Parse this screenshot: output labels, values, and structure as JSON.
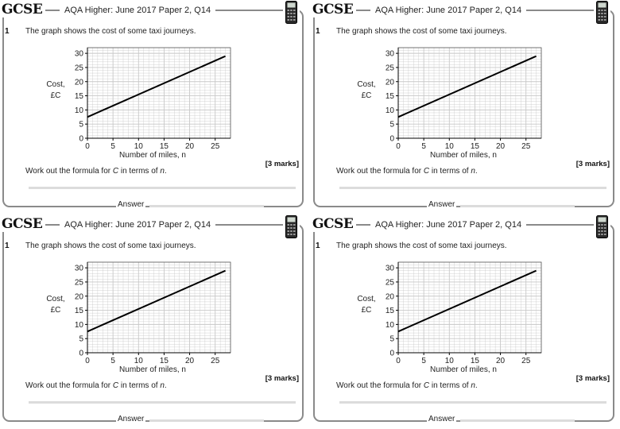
{
  "cards": [
    {
      "gcse": "GCSE",
      "header": "AQA Higher: June 2017 Paper 2, Q14",
      "question_number": "1",
      "question_text": "The graph shows the cost of some taxi journeys.",
      "instruction": "Work out the formula for C in terms of n.",
      "marks": "[3 marks]",
      "answer_label": "Answer"
    },
    {
      "gcse": "GCSE",
      "header": "AQA Higher: June 2017 Paper 2, Q14",
      "question_number": "1",
      "question_text": "The graph shows the cost of some taxi journeys.",
      "instruction": "Work out the formula for C in terms of n.",
      "marks": "[3 marks]",
      "answer_label": "Answer"
    },
    {
      "gcse": "GCSE",
      "header": "AQA Higher: June 2017 Paper 2, Q14",
      "question_number": "1",
      "question_text": "The graph shows the cost of some taxi journeys.",
      "instruction": "Work out the formula for C in terms of n.",
      "marks": "[3 marks]",
      "answer_label": "Answer"
    },
    {
      "gcse": "GCSE",
      "header": "AQA Higher: June 2017 Paper 2, Q14",
      "question_number": "1",
      "question_text": "The graph shows the cost of some taxi journeys.",
      "instruction": "Work out the formula for C in terms of n.",
      "marks": "[3 marks]",
      "answer_label": "Answer"
    }
  ],
  "chart_data": {
    "type": "line",
    "xlabel": "Number of miles, n",
    "ylabel_line1": "Cost,",
    "ylabel_line2": "£C",
    "xlim": [
      0,
      28
    ],
    "ylim": [
      0,
      32
    ],
    "xticks": [
      0,
      5,
      10,
      15,
      20,
      25
    ],
    "yticks": [
      0,
      5,
      10,
      15,
      20,
      25,
      30
    ],
    "minor_grid_step": 1,
    "grid": true,
    "series": [
      {
        "x": [
          0,
          27
        ],
        "y": [
          7.5,
          29
        ]
      }
    ]
  },
  "colors": {
    "frame": "#8a8a8a",
    "grid": "#c8c8c8",
    "line": "#000000"
  },
  "icons": {
    "calculator": "calculator-icon"
  }
}
